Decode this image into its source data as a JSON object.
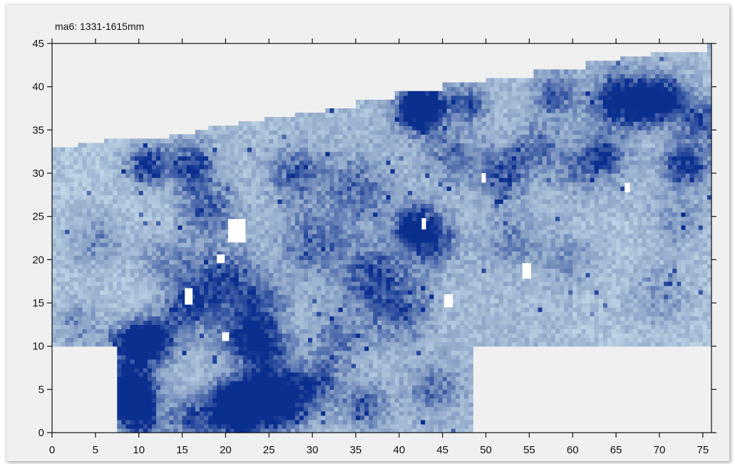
{
  "chart_data": {
    "type": "heatmap",
    "title": "ma6:  1331-1615mm",
    "xlabel": "",
    "ylabel": "",
    "xlim": [
      0,
      76
    ],
    "ylim": [
      0,
      45
    ],
    "x_ticks": [
      0,
      5,
      10,
      15,
      20,
      25,
      30,
      35,
      40,
      45,
      50,
      55,
      60,
      65,
      70,
      75
    ],
    "y_ticks": [
      0,
      5,
      10,
      15,
      20,
      25,
      30,
      35,
      40,
      45
    ],
    "grid": false,
    "colormap": {
      "low": "#d6ecf5",
      "mid": "#8fa6c8",
      "high": "#0b2f8f"
    },
    "background_color": "#f0f0f0",
    "scan_region": {
      "upper_block": {
        "x_range": [
          0,
          76
        ],
        "y_bottom": 9.8
      },
      "lower_block": {
        "x_range": [
          7.7,
          48.3
        ],
        "y_range": [
          0,
          9.8
        ]
      },
      "top_edge_profile": [
        [
          0,
          32.6
        ],
        [
          1.7,
          32.9
        ],
        [
          3.2,
          33.1
        ],
        [
          6,
          33.6
        ],
        [
          8.5,
          33.8
        ],
        [
          13.5,
          34.1
        ],
        [
          15.2,
          34.4
        ],
        [
          16.3,
          34.9
        ],
        [
          18,
          35.3
        ],
        [
          21.5,
          35.6
        ],
        [
          24.5,
          36.1
        ],
        [
          28,
          36.6
        ],
        [
          31.5,
          37.2
        ],
        [
          35,
          38.1
        ],
        [
          39.5,
          39.4
        ],
        [
          45,
          40.3
        ],
        [
          50,
          41.0
        ],
        [
          55.5,
          42.0
        ],
        [
          61.5,
          42.7
        ],
        [
          65.5,
          43.3
        ],
        [
          68.8,
          43.6
        ],
        [
          75.3,
          43.6
        ],
        [
          75.7,
          44.6
        ],
        [
          76,
          44.6
        ]
      ]
    },
    "gaps": [
      {
        "x": [
          20.3,
          22.3
        ],
        "y": [
          22.0,
          24.7
        ]
      },
      {
        "x": [
          19.0,
          19.9
        ],
        "y": [
          19.6,
          20.6
        ]
      },
      {
        "x": [
          15.3,
          16.2
        ],
        "y": [
          14.8,
          16.7
        ]
      },
      {
        "x": [
          19.6,
          20.4
        ],
        "y": [
          10.6,
          11.6
        ]
      },
      {
        "x": [
          42.6,
          43.1
        ],
        "y": [
          23.5,
          24.8
        ]
      },
      {
        "x": [
          45.2,
          46.2
        ],
        "y": [
          14.5,
          16.0
        ]
      },
      {
        "x": [
          49.5,
          50.0
        ],
        "y": [
          28.9,
          30.0
        ]
      },
      {
        "x": [
          54.2,
          55.2
        ],
        "y": [
          17.8,
          19.6
        ]
      },
      {
        "x": [
          66.0,
          66.6
        ],
        "y": [
          27.8,
          28.9
        ]
      }
    ],
    "hotspots": [
      {
        "x": 11,
        "y": 31,
        "r": 2.5,
        "v": 0.85
      },
      {
        "x": 16,
        "y": 31,
        "r": 2.5,
        "v": 0.7
      },
      {
        "x": 12,
        "y": 11,
        "r": 2.5,
        "v": 0.9
      },
      {
        "x": 9,
        "y": 10.5,
        "r": 2.5,
        "v": 0.8
      },
      {
        "x": 9.5,
        "y": 6,
        "r": 2.5,
        "v": 0.75
      },
      {
        "x": 9,
        "y": 4,
        "r": 2.5,
        "v": 0.8
      },
      {
        "x": 10,
        "y": 1.5,
        "r": 2.5,
        "v": 0.7
      },
      {
        "x": 16,
        "y": 1.5,
        "r": 2.5,
        "v": 0.6
      },
      {
        "x": 24.5,
        "y": 4,
        "r": 3,
        "v": 0.9
      },
      {
        "x": 22,
        "y": 3,
        "r": 3,
        "v": 0.85
      },
      {
        "x": 27,
        "y": 4,
        "r": 3,
        "v": 0.85
      },
      {
        "x": 20.5,
        "y": 3,
        "r": 2.5,
        "v": 0.85
      },
      {
        "x": 22,
        "y": 11,
        "r": 3,
        "v": 0.6
      },
      {
        "x": 25,
        "y": 10,
        "r": 2.5,
        "v": 0.6
      },
      {
        "x": 16,
        "y": 15,
        "r": 3,
        "v": 0.7
      },
      {
        "x": 20,
        "y": 18,
        "r": 3.5,
        "v": 0.55
      },
      {
        "x": 24,
        "y": 15,
        "r": 3,
        "v": 0.5
      },
      {
        "x": 37,
        "y": 18,
        "r": 4,
        "v": 0.55
      },
      {
        "x": 42,
        "y": 24,
        "r": 2.5,
        "v": 0.85
      },
      {
        "x": 44,
        "y": 22,
        "r": 3,
        "v": 0.5
      },
      {
        "x": 43,
        "y": 38,
        "r": 2.5,
        "v": 0.85
      },
      {
        "x": 42,
        "y": 37,
        "r": 2.5,
        "v": 0.7
      },
      {
        "x": 48,
        "y": 38,
        "r": 2,
        "v": 0.6
      },
      {
        "x": 52,
        "y": 30,
        "r": 3,
        "v": 0.6
      },
      {
        "x": 65.5,
        "y": 38.5,
        "r": 3,
        "v": 0.95
      },
      {
        "x": 69,
        "y": 38,
        "r": 2.5,
        "v": 0.7
      },
      {
        "x": 71,
        "y": 39,
        "r": 2.5,
        "v": 0.6
      },
      {
        "x": 58,
        "y": 39,
        "r": 2.5,
        "v": 0.55
      },
      {
        "x": 73,
        "y": 31,
        "r": 2.5,
        "v": 0.8
      },
      {
        "x": 75,
        "y": 36,
        "r": 2.5,
        "v": 0.6
      },
      {
        "x": 64,
        "y": 32,
        "r": 2.5,
        "v": 0.5
      },
      {
        "x": 56,
        "y": 33,
        "r": 2.5,
        "v": 0.45
      },
      {
        "x": 61,
        "y": 31,
        "r": 3,
        "v": 0.4
      },
      {
        "x": 5,
        "y": 22,
        "r": 3.5,
        "v": 0.35
      },
      {
        "x": 35,
        "y": 28,
        "r": 4,
        "v": 0.45
      },
      {
        "x": 28,
        "y": 30,
        "r": 3,
        "v": 0.5
      },
      {
        "x": 46,
        "y": 32,
        "r": 3,
        "v": 0.4
      },
      {
        "x": 30,
        "y": 22,
        "r": 3.5,
        "v": 0.5
      },
      {
        "x": 40,
        "y": 14,
        "r": 3.5,
        "v": 0.45
      },
      {
        "x": 33,
        "y": 11,
        "r": 3,
        "v": 0.4
      },
      {
        "x": 53,
        "y": 22,
        "r": 3,
        "v": 0.35
      },
      {
        "x": 60,
        "y": 20,
        "r": 3,
        "v": 0.3
      },
      {
        "x": 70,
        "y": 16,
        "r": 3.5,
        "v": 0.3
      },
      {
        "x": 72,
        "y": 24,
        "r": 3,
        "v": 0.3
      },
      {
        "x": 18,
        "y": 26,
        "r": 3,
        "v": 0.55
      },
      {
        "x": 13,
        "y": 20,
        "r": 3,
        "v": 0.4
      },
      {
        "x": 3,
        "y": 13,
        "r": 2.5,
        "v": 0.35
      },
      {
        "x": 36,
        "y": 3,
        "r": 2.5,
        "v": 0.5
      },
      {
        "x": 31,
        "y": 6,
        "r": 2.5,
        "v": 0.55
      },
      {
        "x": 44,
        "y": 5,
        "r": 3,
        "v": 0.4
      }
    ]
  }
}
